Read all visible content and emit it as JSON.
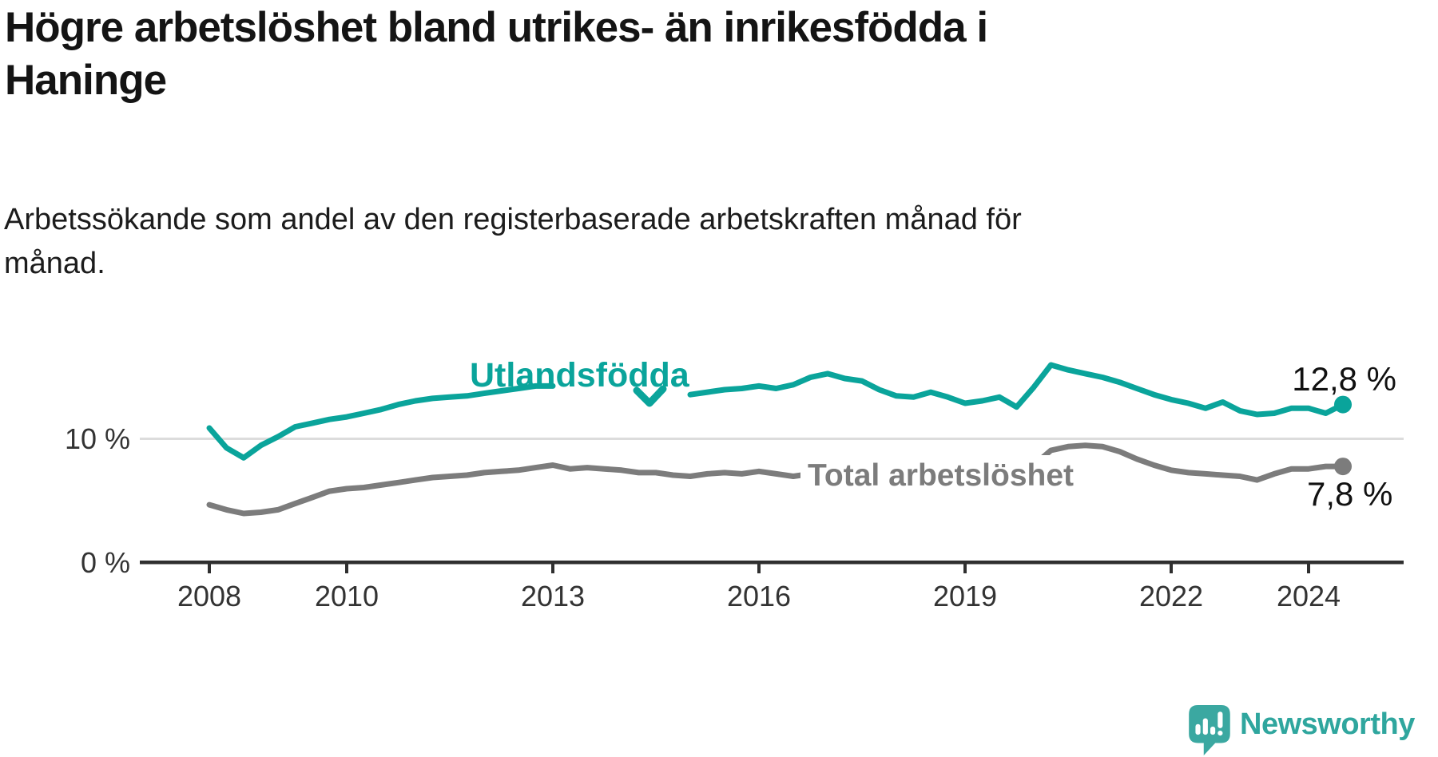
{
  "title_line1": "Högre arbetslöshet bland utrikes- än inrikesfödda i",
  "title_line2": "Haninge",
  "subtitle_line1": "Arbetssökande som andel av den registerbaserade arbetskraften månad för",
  "subtitle_line2": "månad.",
  "branding": {
    "name": "Newsworthy",
    "icon": "speech-bubble-chart-icon",
    "color": "#3ba8a1"
  },
  "chart_data": {
    "type": "line",
    "title": "Högre arbetslöshet bland utrikes- än inrikesfödda i Haninge",
    "subtitle": "Arbetssökande som andel av den registerbaserade arbetskraften månad för månad.",
    "unit": "%",
    "grid": "horizontal-10-only",
    "legend_position": "inline-labels-on-lines",
    "ylim": [
      0,
      20
    ],
    "y_ticks": [
      "0 %",
      "10 %"
    ],
    "x_ticks": [
      "2008",
      "2010",
      "2013",
      "2016",
      "2019",
      "2022",
      "2024"
    ],
    "x_tick_years": [
      2008,
      2010,
      2013,
      2016,
      2019,
      2022,
      2024
    ],
    "x_range_years": [
      2008.0,
      2024.5
    ],
    "periods": [
      "2008Q1",
      "2008Q2",
      "2008Q3",
      "2008Q4",
      "2009Q1",
      "2009Q2",
      "2009Q3",
      "2009Q4",
      "2010Q1",
      "2010Q2",
      "2010Q3",
      "2010Q4",
      "2011Q1",
      "2011Q2",
      "2011Q3",
      "2011Q4",
      "2012Q1",
      "2012Q2",
      "2012Q3",
      "2012Q4",
      "2013Q1",
      "2013Q2",
      "2013Q3",
      "2013Q4",
      "2014Q1",
      "2014Q2",
      "2014Q3",
      "2014Q4",
      "2015Q1",
      "2015Q2",
      "2015Q3",
      "2015Q4",
      "2016Q1",
      "2016Q2",
      "2016Q3",
      "2016Q4",
      "2017Q1",
      "2017Q2",
      "2017Q3",
      "2017Q4",
      "2018Q1",
      "2018Q2",
      "2018Q3",
      "2018Q4",
      "2019Q1",
      "2019Q2",
      "2019Q3",
      "2019Q4",
      "2020Q1",
      "2020Q2",
      "2020Q3",
      "2020Q4",
      "2021Q1",
      "2021Q2",
      "2021Q3",
      "2021Q4",
      "2022Q1",
      "2022Q2",
      "2022Q3",
      "2022Q4",
      "2023Q1",
      "2023Q2",
      "2023Q3",
      "2023Q4",
      "2024Q1",
      "2024Q2",
      "2024Q3"
    ],
    "series": [
      {
        "name": "Utlandsfödda",
        "slug": "utlandsfodda",
        "color": "#0aa49b",
        "end_label": "12,8 %",
        "end_value": 12.8,
        "draw_ranges": [
          [
            0,
            20
          ],
          [
            28,
            66
          ]
        ],
        "values": [
          10.9,
          9.3,
          8.5,
          9.5,
          10.2,
          11.0,
          11.3,
          11.6,
          11.8,
          12.1,
          12.4,
          12.8,
          13.1,
          13.3,
          13.4,
          13.5,
          13.7,
          13.9,
          14.1,
          14.3,
          14.3,
          14.5,
          14.6,
          14.4,
          13.9,
          13.2,
          13.4,
          13.5,
          13.6,
          13.8,
          14.0,
          14.1,
          14.3,
          14.1,
          14.4,
          15.0,
          15.3,
          14.9,
          14.7,
          14.0,
          13.5,
          13.4,
          13.8,
          13.4,
          12.9,
          13.1,
          13.4,
          12.6,
          14.2,
          16.0,
          15.6,
          15.3,
          15.0,
          14.6,
          14.1,
          13.6,
          13.2,
          12.9,
          12.5,
          13.0,
          12.3,
          12.0,
          12.1,
          12.5,
          12.5,
          12.1,
          12.8
        ]
      },
      {
        "name": "Total arbetslöshet",
        "slug": "total-arbetsloshet",
        "color": "#7c7c7c",
        "end_label": "7,8 %",
        "end_value": 7.8,
        "draw_ranges": [
          [
            0,
            66
          ]
        ],
        "values": [
          4.7,
          4.3,
          4.0,
          4.1,
          4.3,
          4.8,
          5.3,
          5.8,
          6.0,
          6.1,
          6.3,
          6.5,
          6.7,
          6.9,
          7.0,
          7.1,
          7.3,
          7.4,
          7.5,
          7.7,
          7.9,
          7.6,
          7.7,
          7.6,
          7.5,
          7.3,
          7.3,
          7.1,
          7.0,
          7.2,
          7.3,
          7.2,
          7.4,
          7.2,
          7.0,
          7.2,
          7.4,
          7.3,
          7.2,
          7.3,
          7.2,
          7.1,
          7.0,
          7.1,
          7.1,
          7.2,
          7.3,
          7.5,
          7.9,
          9.1,
          9.4,
          9.5,
          9.4,
          9.0,
          8.4,
          7.9,
          7.5,
          7.3,
          7.2,
          7.1,
          7.0,
          6.7,
          7.2,
          7.6,
          7.6,
          7.8,
          7.8
        ]
      }
    ]
  }
}
